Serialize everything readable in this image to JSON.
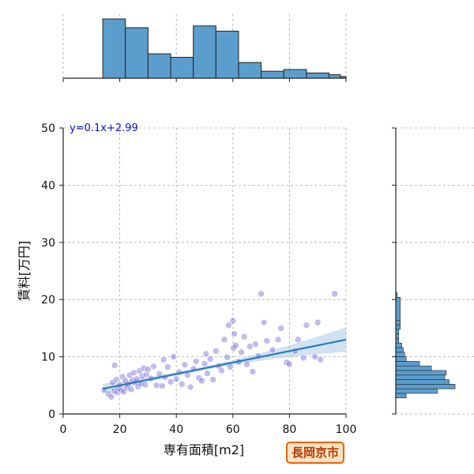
{
  "chart_data": {
    "type": "scatter",
    "xlabel": "専有面積[m2]",
    "ylabel": "賃料[万円]",
    "xlim": [
      0,
      100
    ],
    "ylim": [
      0,
      50
    ],
    "xticks": [
      "0",
      "20",
      "40",
      "60",
      "80",
      "100"
    ],
    "yticks": [
      "0",
      "10",
      "20",
      "30",
      "40",
      "50"
    ],
    "grid": true,
    "regression": {
      "label": "y=0.1x+2.99",
      "slope": 0.1,
      "intercept": 2.99,
      "x_range": [
        14,
        100
      ]
    },
    "scatter": {
      "x": [
        14.5,
        16,
        17,
        17.5,
        18,
        18.2,
        18.8,
        19,
        19.5,
        20,
        20.5,
        21,
        21.5,
        22,
        22.5,
        23,
        23.5,
        24,
        24.5,
        25,
        25.5,
        26,
        26.5,
        27,
        27.5,
        28,
        28.5,
        29,
        29.5,
        30,
        31,
        32,
        33,
        34,
        35,
        35.5,
        36,
        37,
        38,
        39,
        40,
        41,
        42,
        43,
        44,
        45,
        46,
        47,
        48,
        49,
        50,
        50.5,
        51,
        52,
        53,
        54,
        55,
        56,
        57,
        58,
        58.5,
        59,
        60,
        60.2,
        60.5,
        61,
        62,
        63,
        64,
        65,
        66,
        67,
        68,
        69,
        70,
        71,
        72,
        74,
        76,
        77,
        79,
        80,
        82,
        83,
        85,
        86,
        89,
        90,
        91,
        96
      ],
      "y": [
        4.2,
        3.5,
        3.0,
        5.5,
        4.0,
        8.5,
        6.0,
        3.8,
        4.5,
        5.0,
        4.1,
        6.5,
        3.9,
        5.8,
        4.6,
        5.2,
        6.8,
        4.3,
        5.9,
        7.2,
        5.5,
        6.1,
        4.8,
        7.5,
        5.3,
        6.6,
        8.0,
        5.1,
        6.9,
        7.8,
        6.2,
        8.3,
        5.0,
        7.0,
        4.9,
        9.5,
        6.4,
        8.2,
        5.6,
        10.0,
        6.1,
        7.3,
        5.2,
        8.6,
        6.8,
        4.7,
        7.9,
        9.2,
        6.3,
        5.8,
        8.8,
        10.5,
        7.1,
        9.6,
        6.0,
        11.0,
        8.4,
        7.6,
        13.0,
        9.9,
        15.5,
        8.2,
        16.3,
        11.5,
        14.0,
        12.0,
        9.1,
        10.8,
        13.5,
        8.7,
        11.8,
        7.4,
        12.2,
        10.1,
        21.0,
        16.0,
        12.8,
        11.2,
        13.0,
        15.0,
        9.0,
        8.7,
        11.0,
        13.0,
        9.8,
        15.5,
        10.0,
        16.0,
        9.5,
        21.0
      ]
    },
    "top_histogram": {
      "bin_edges": [
        14,
        22,
        30,
        38,
        46,
        54,
        62,
        70,
        78,
        86,
        94,
        98,
        102
      ],
      "counts": [
        34,
        29,
        14,
        12,
        30,
        27,
        9,
        4,
        5,
        3,
        2,
        1
      ]
    },
    "right_histogram": {
      "bin_edges": [
        2.8,
        3.6,
        4.4,
        5.2,
        6.0,
        6.8,
        7.6,
        8.4,
        9.2,
        10.0,
        10.8,
        11.6,
        12.4,
        13.2,
        14.0,
        14.8,
        15.6,
        16.4,
        20.4,
        21.2
      ],
      "counts": [
        7,
        28,
        40,
        36,
        33,
        34,
        24,
        16,
        7,
        6,
        5,
        4,
        2,
        2,
        2,
        3,
        3,
        3,
        1
      ]
    }
  },
  "badge": {
    "text": "長岡京市"
  },
  "colors": {
    "bar": "#5b9ece",
    "bar_edge": "#222222",
    "point": "#4a40c8",
    "line": "#2b7bba",
    "band": "#a8c8e8",
    "equation": "#1010c0"
  }
}
